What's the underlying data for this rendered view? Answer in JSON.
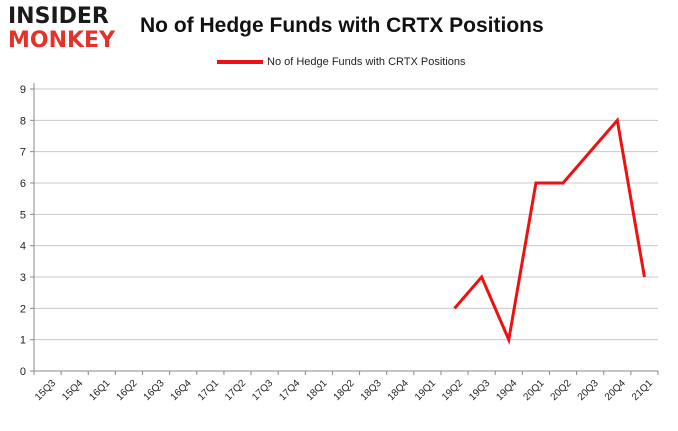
{
  "logo": {
    "line1": "INSIDER",
    "line2": "MONKEY"
  },
  "colors": {
    "series": "#ee1111",
    "grid": "#c8c8c8",
    "axis": "#888888"
  },
  "chart_data": {
    "type": "line",
    "title": "No of Hedge Funds with CRTX Positions",
    "xlabel": "",
    "ylabel": "",
    "ylim": [
      0,
      9
    ],
    "yticks": [
      "0",
      "1",
      "2",
      "3",
      "4",
      "5",
      "6",
      "7",
      "8",
      "9"
    ],
    "grid": true,
    "legend_position": "top-center",
    "categories": [
      "15Q3",
      "15Q4",
      "16Q1",
      "16Q2",
      "16Q3",
      "16Q4",
      "17Q1",
      "17Q2",
      "17Q3",
      "17Q4",
      "18Q1",
      "18Q2",
      "18Q3",
      "18Q4",
      "19Q1",
      "19Q2",
      "19Q3",
      "19Q4",
      "20Q1",
      "20Q2",
      "20Q3",
      "20Q4",
      "21Q1"
    ],
    "series": [
      {
        "name": "No of Hedge Funds with CRTX Positions",
        "values": [
          null,
          null,
          null,
          null,
          null,
          null,
          null,
          null,
          null,
          null,
          null,
          null,
          null,
          null,
          null,
          2,
          3,
          1,
          6,
          6,
          7,
          8,
          3
        ]
      }
    ]
  }
}
